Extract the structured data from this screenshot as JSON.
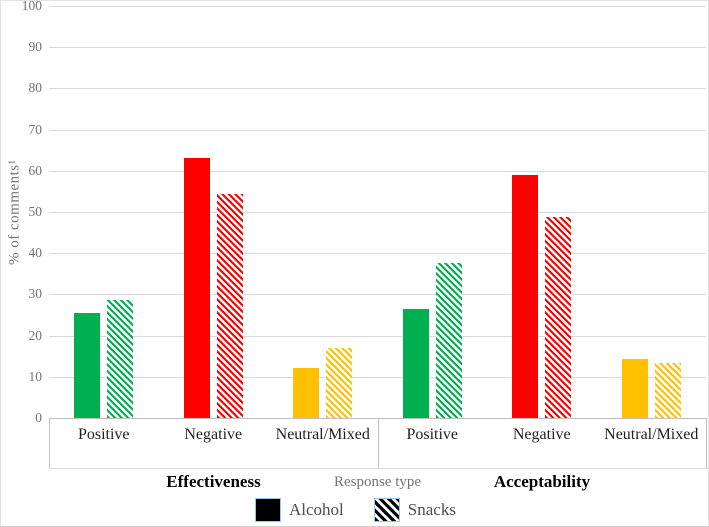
{
  "chart_data": {
    "type": "bar",
    "title": "",
    "ylabel": "% of comments¹",
    "xlabel": "Response type",
    "ylim": [
      0,
      100
    ],
    "yticks": [
      0,
      10,
      20,
      30,
      40,
      50,
      60,
      70,
      80,
      90,
      100
    ],
    "grid": true,
    "legend_position": "bottom-center",
    "groups": [
      "Effectiveness",
      "Acceptability"
    ],
    "categories": [
      "Positive",
      "Negative",
      "Neutral/Mixed"
    ],
    "category_colors": [
      "#00B050",
      "#FF0000",
      "#FFC000"
    ],
    "series": [
      {
        "name": "Alcohol",
        "pattern": "solid",
        "values": {
          "Effectiveness": [
            25.5,
            63.0,
            12.2
          ],
          "Acceptability": [
            26.5,
            59.0,
            14.4
          ]
        }
      },
      {
        "name": "Snacks",
        "pattern": "diagonal-hatch",
        "values": {
          "Effectiveness": [
            28.7,
            54.4,
            16.9
          ],
          "Acceptability": [
            37.6,
            48.8,
            13.4
          ]
        }
      }
    ]
  },
  "legend": {
    "key_fill": "#000000",
    "key_border": "#9DC3E6"
  },
  "style_colors": {
    "gridline": "#D9D9D9",
    "axis_line": "#BFBFBF"
  }
}
